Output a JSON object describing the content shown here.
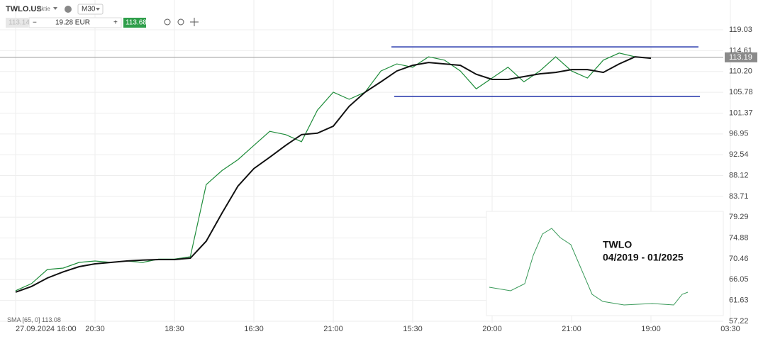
{
  "chart_data": {
    "type": "line",
    "symbol": "TWLO.US",
    "asset_type": "Aktie",
    "timeframe": "M30",
    "sell_price": "113.14",
    "volume": "19.28 EUR",
    "buy_price": "113.68",
    "last_price": 113.19,
    "last_price_label": "113.19",
    "indicator_value": 113.08,
    "inset_title": "TWLO",
    "inset_subtitle": "04/2019 - 01/2025",
    "categories": [
      "27.09.2024 16:00",
      null,
      null,
      null,
      null,
      "20:30",
      null,
      null,
      null,
      null,
      "18:30",
      null,
      null,
      null,
      null,
      "16:30",
      null,
      null,
      null,
      null,
      "21:00",
      null,
      null,
      null,
      null,
      "15:30",
      null,
      null,
      null,
      null,
      "20:00",
      null,
      null,
      null,
      null,
      "21:00",
      null,
      null,
      null,
      null,
      "19:00",
      null,
      null,
      null,
      null,
      "03:30"
    ],
    "series": [
      {
        "name": "TWLO.US",
        "color": "#1e8c3a",
        "values": [
          63.7,
          65.2,
          68.2,
          68.5,
          69.7,
          70.0,
          69.7,
          70.0,
          69.7,
          70.4,
          70.4,
          70.9,
          86.2,
          89.2,
          91.5,
          94.5,
          97.5,
          96.8,
          95.3,
          102.0,
          105.8,
          104.3,
          105.8,
          110.3,
          111.8,
          111.1,
          113.3,
          112.6,
          110.3,
          106.5,
          108.8,
          111.1,
          108.0,
          110.3,
          113.3,
          110.3,
          108.8,
          112.6,
          114.1,
          113.3,
          113.0,
          null,
          null,
          null,
          null,
          null
        ]
      },
      {
        "name": "SMA [65, 0]",
        "color": "#111111",
        "values": [
          63.4,
          64.6,
          66.4,
          67.7,
          68.8,
          69.4,
          69.7,
          70.0,
          70.2,
          70.3,
          70.3,
          70.6,
          74.2,
          80.2,
          85.9,
          89.6,
          92.0,
          94.5,
          96.8,
          97.1,
          98.6,
          102.8,
          105.8,
          108.0,
          110.3,
          111.5,
          112.1,
          111.8,
          111.5,
          109.6,
          108.5,
          108.5,
          109.1,
          109.7,
          110.0,
          110.6,
          110.6,
          110.0,
          111.8,
          113.3,
          113.0,
          null,
          null,
          null,
          null,
          null
        ]
      }
    ],
    "channel_lines": [
      115.4,
      104.9
    ],
    "channel_color": "#2233aa",
    "ylim": [
      56.92,
      125.35
    ],
    "yticks": [
      119.03,
      114.61,
      {
        "value": 110.2,
        "label": "110.20"
      },
      105.78,
      101.37,
      96.95,
      92.54,
      88.12,
      83.71,
      79.29,
      74.88,
      70.46,
      66.05,
      61.63,
      57.22
    ],
    "grid": true
  }
}
